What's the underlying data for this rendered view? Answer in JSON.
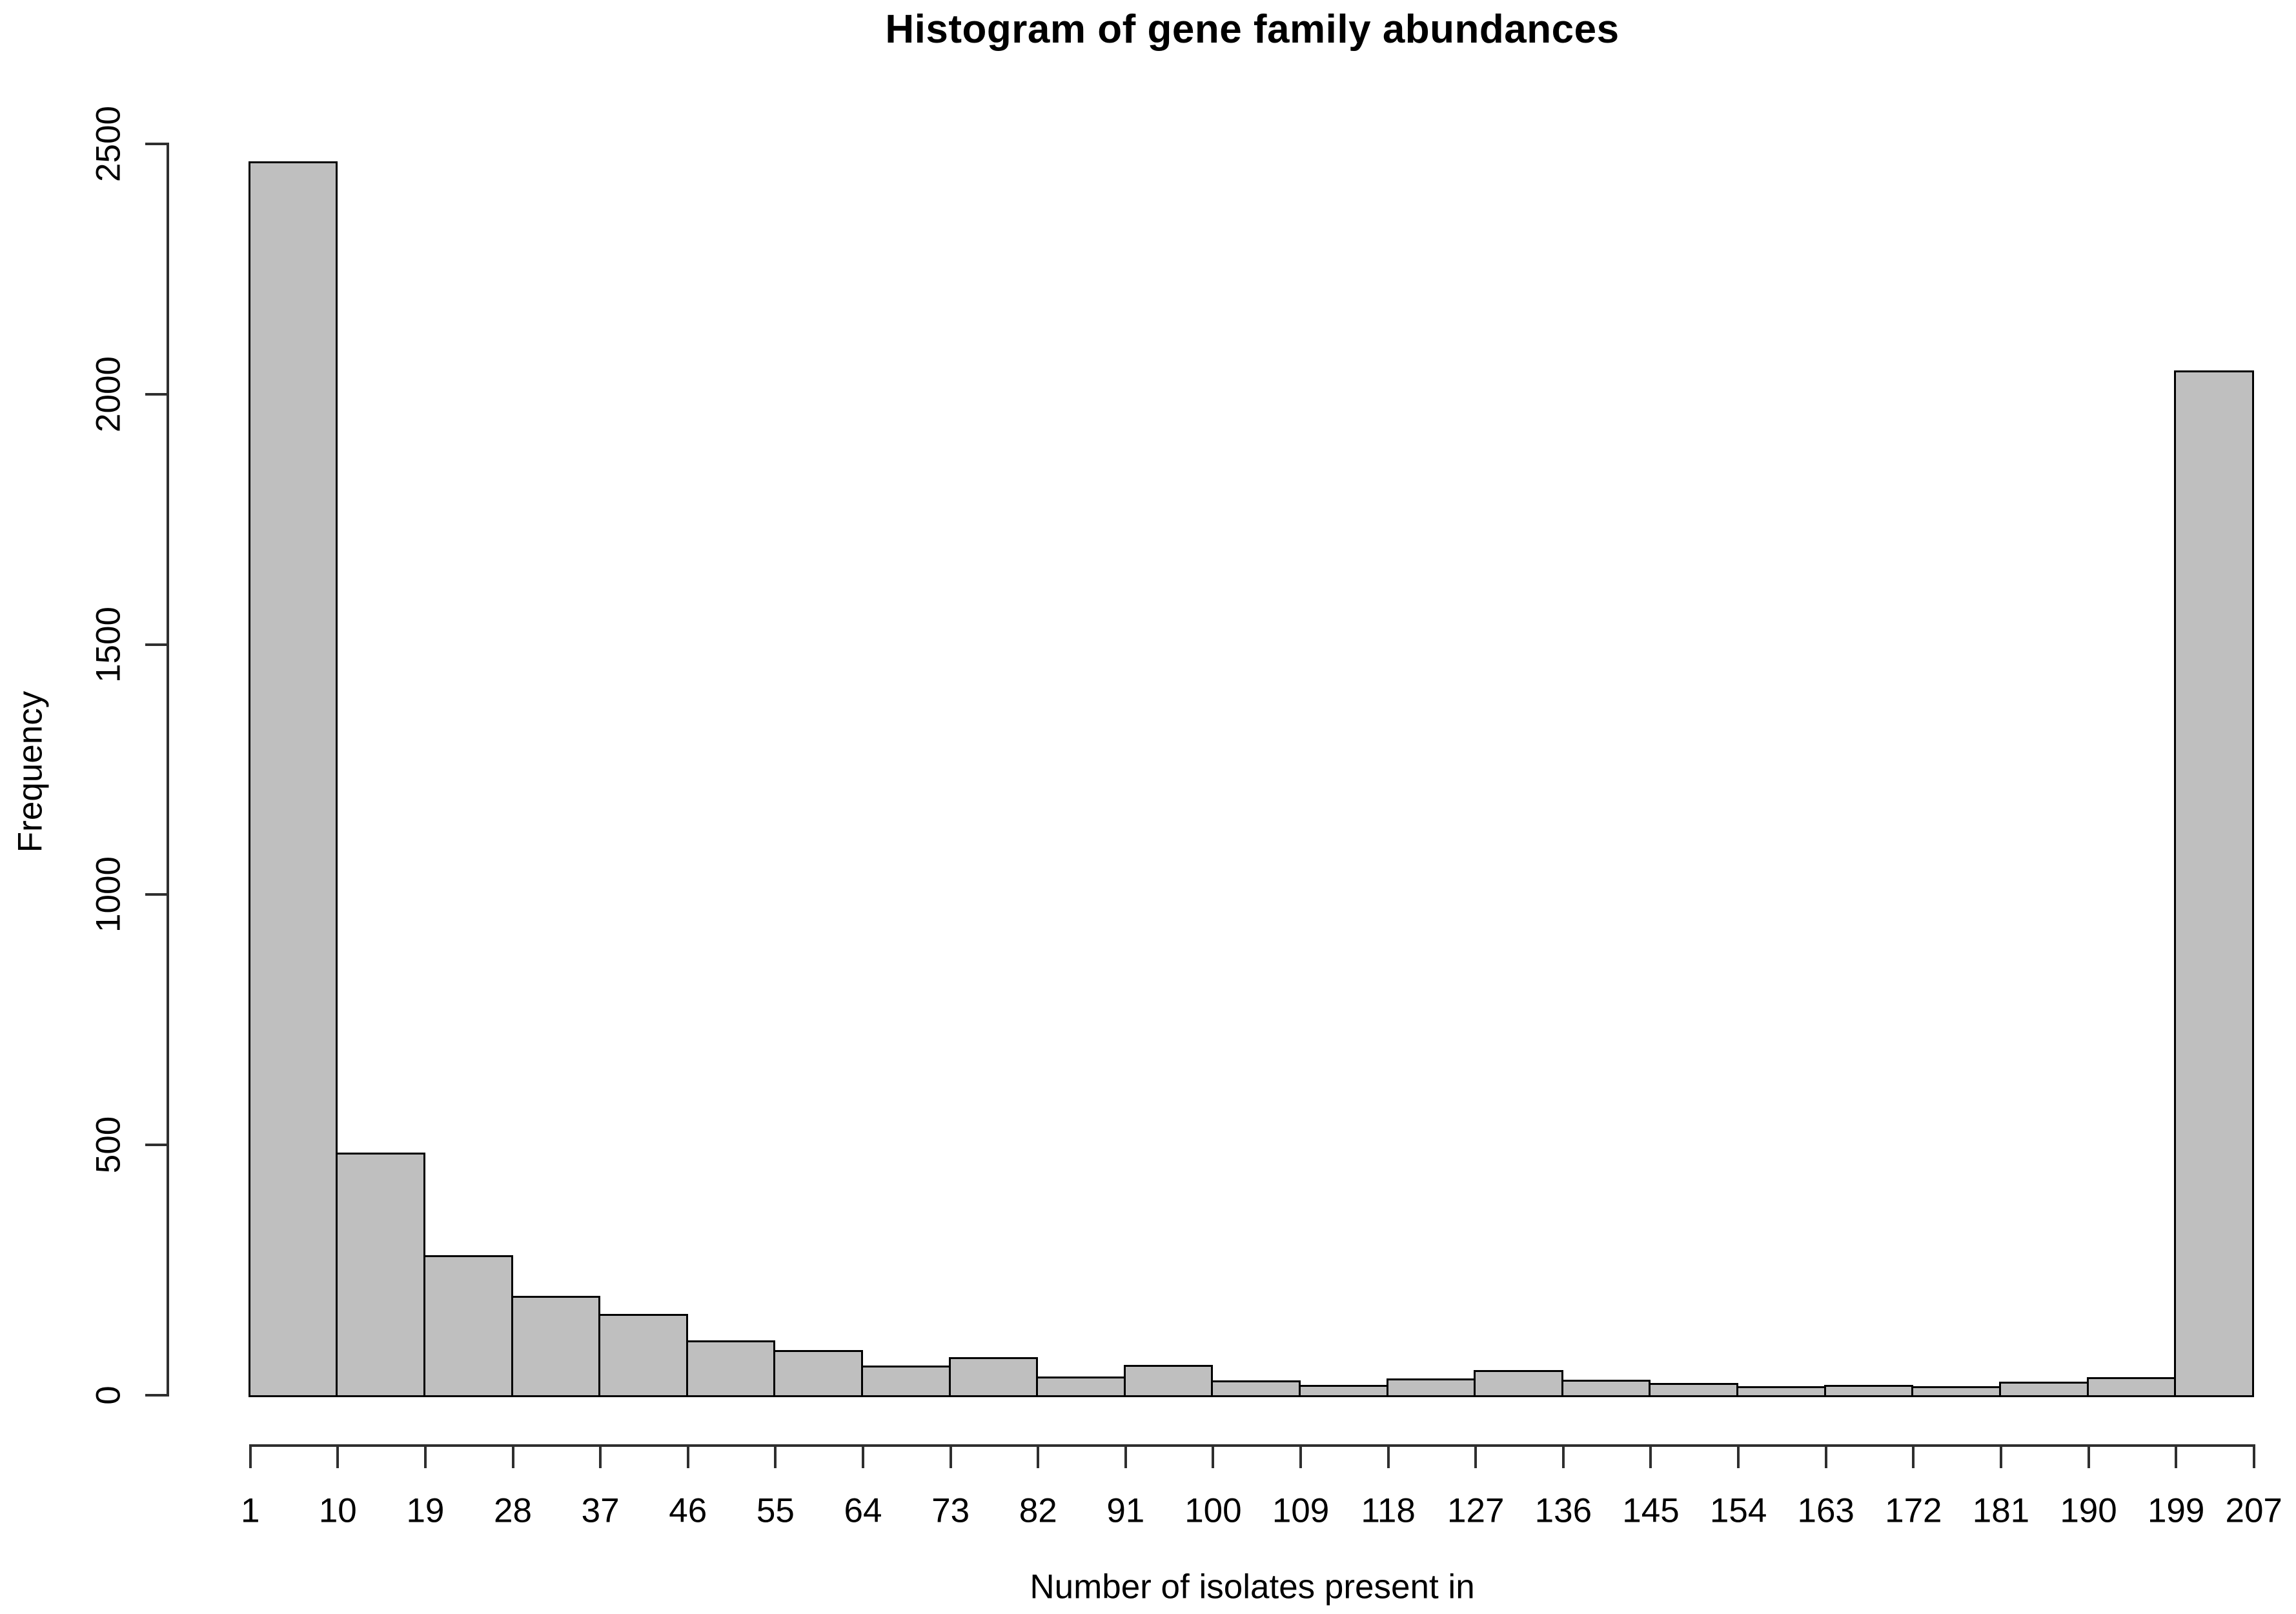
{
  "chart_data": {
    "type": "bar",
    "style": "histogram",
    "title": "Histogram of gene family abundances",
    "xlabel": "Number of isolates present in",
    "ylabel": "Frequency",
    "bin_edges": [
      1,
      10,
      19,
      28,
      37,
      46,
      55,
      64,
      73,
      82,
      91,
      100,
      109,
      118,
      127,
      136,
      145,
      154,
      163,
      172,
      181,
      190,
      199,
      207
    ],
    "values": [
      2465,
      485,
      280,
      199,
      162,
      110,
      90,
      59,
      76,
      38,
      61,
      30,
      21,
      34,
      50,
      31,
      25,
      18,
      20,
      18,
      27,
      36,
      2048
    ],
    "x_tick_labels": [
      "1",
      "10",
      "19",
      "28",
      "37",
      "46",
      "55",
      "64",
      "73",
      "82",
      "91",
      "100",
      "109",
      "118",
      "127",
      "136",
      "145",
      "154",
      "163",
      "172",
      "181",
      "190",
      "199",
      "207"
    ],
    "y_ticks": [
      0,
      500,
      1000,
      1500,
      2000,
      2500
    ],
    "y_tick_labels": [
      "0",
      "500",
      "1000",
      "1500",
      "2000",
      "2500"
    ],
    "xlim": [
      1,
      207
    ],
    "ylim": [
      0,
      2500
    ],
    "grid": false,
    "legend": false,
    "bar_fill_color": "#bfbfbf",
    "bar_border_color": "#000000",
    "axis_color": "#2f2f2f",
    "text_color": "#000000",
    "background_color": "#ffffff"
  }
}
